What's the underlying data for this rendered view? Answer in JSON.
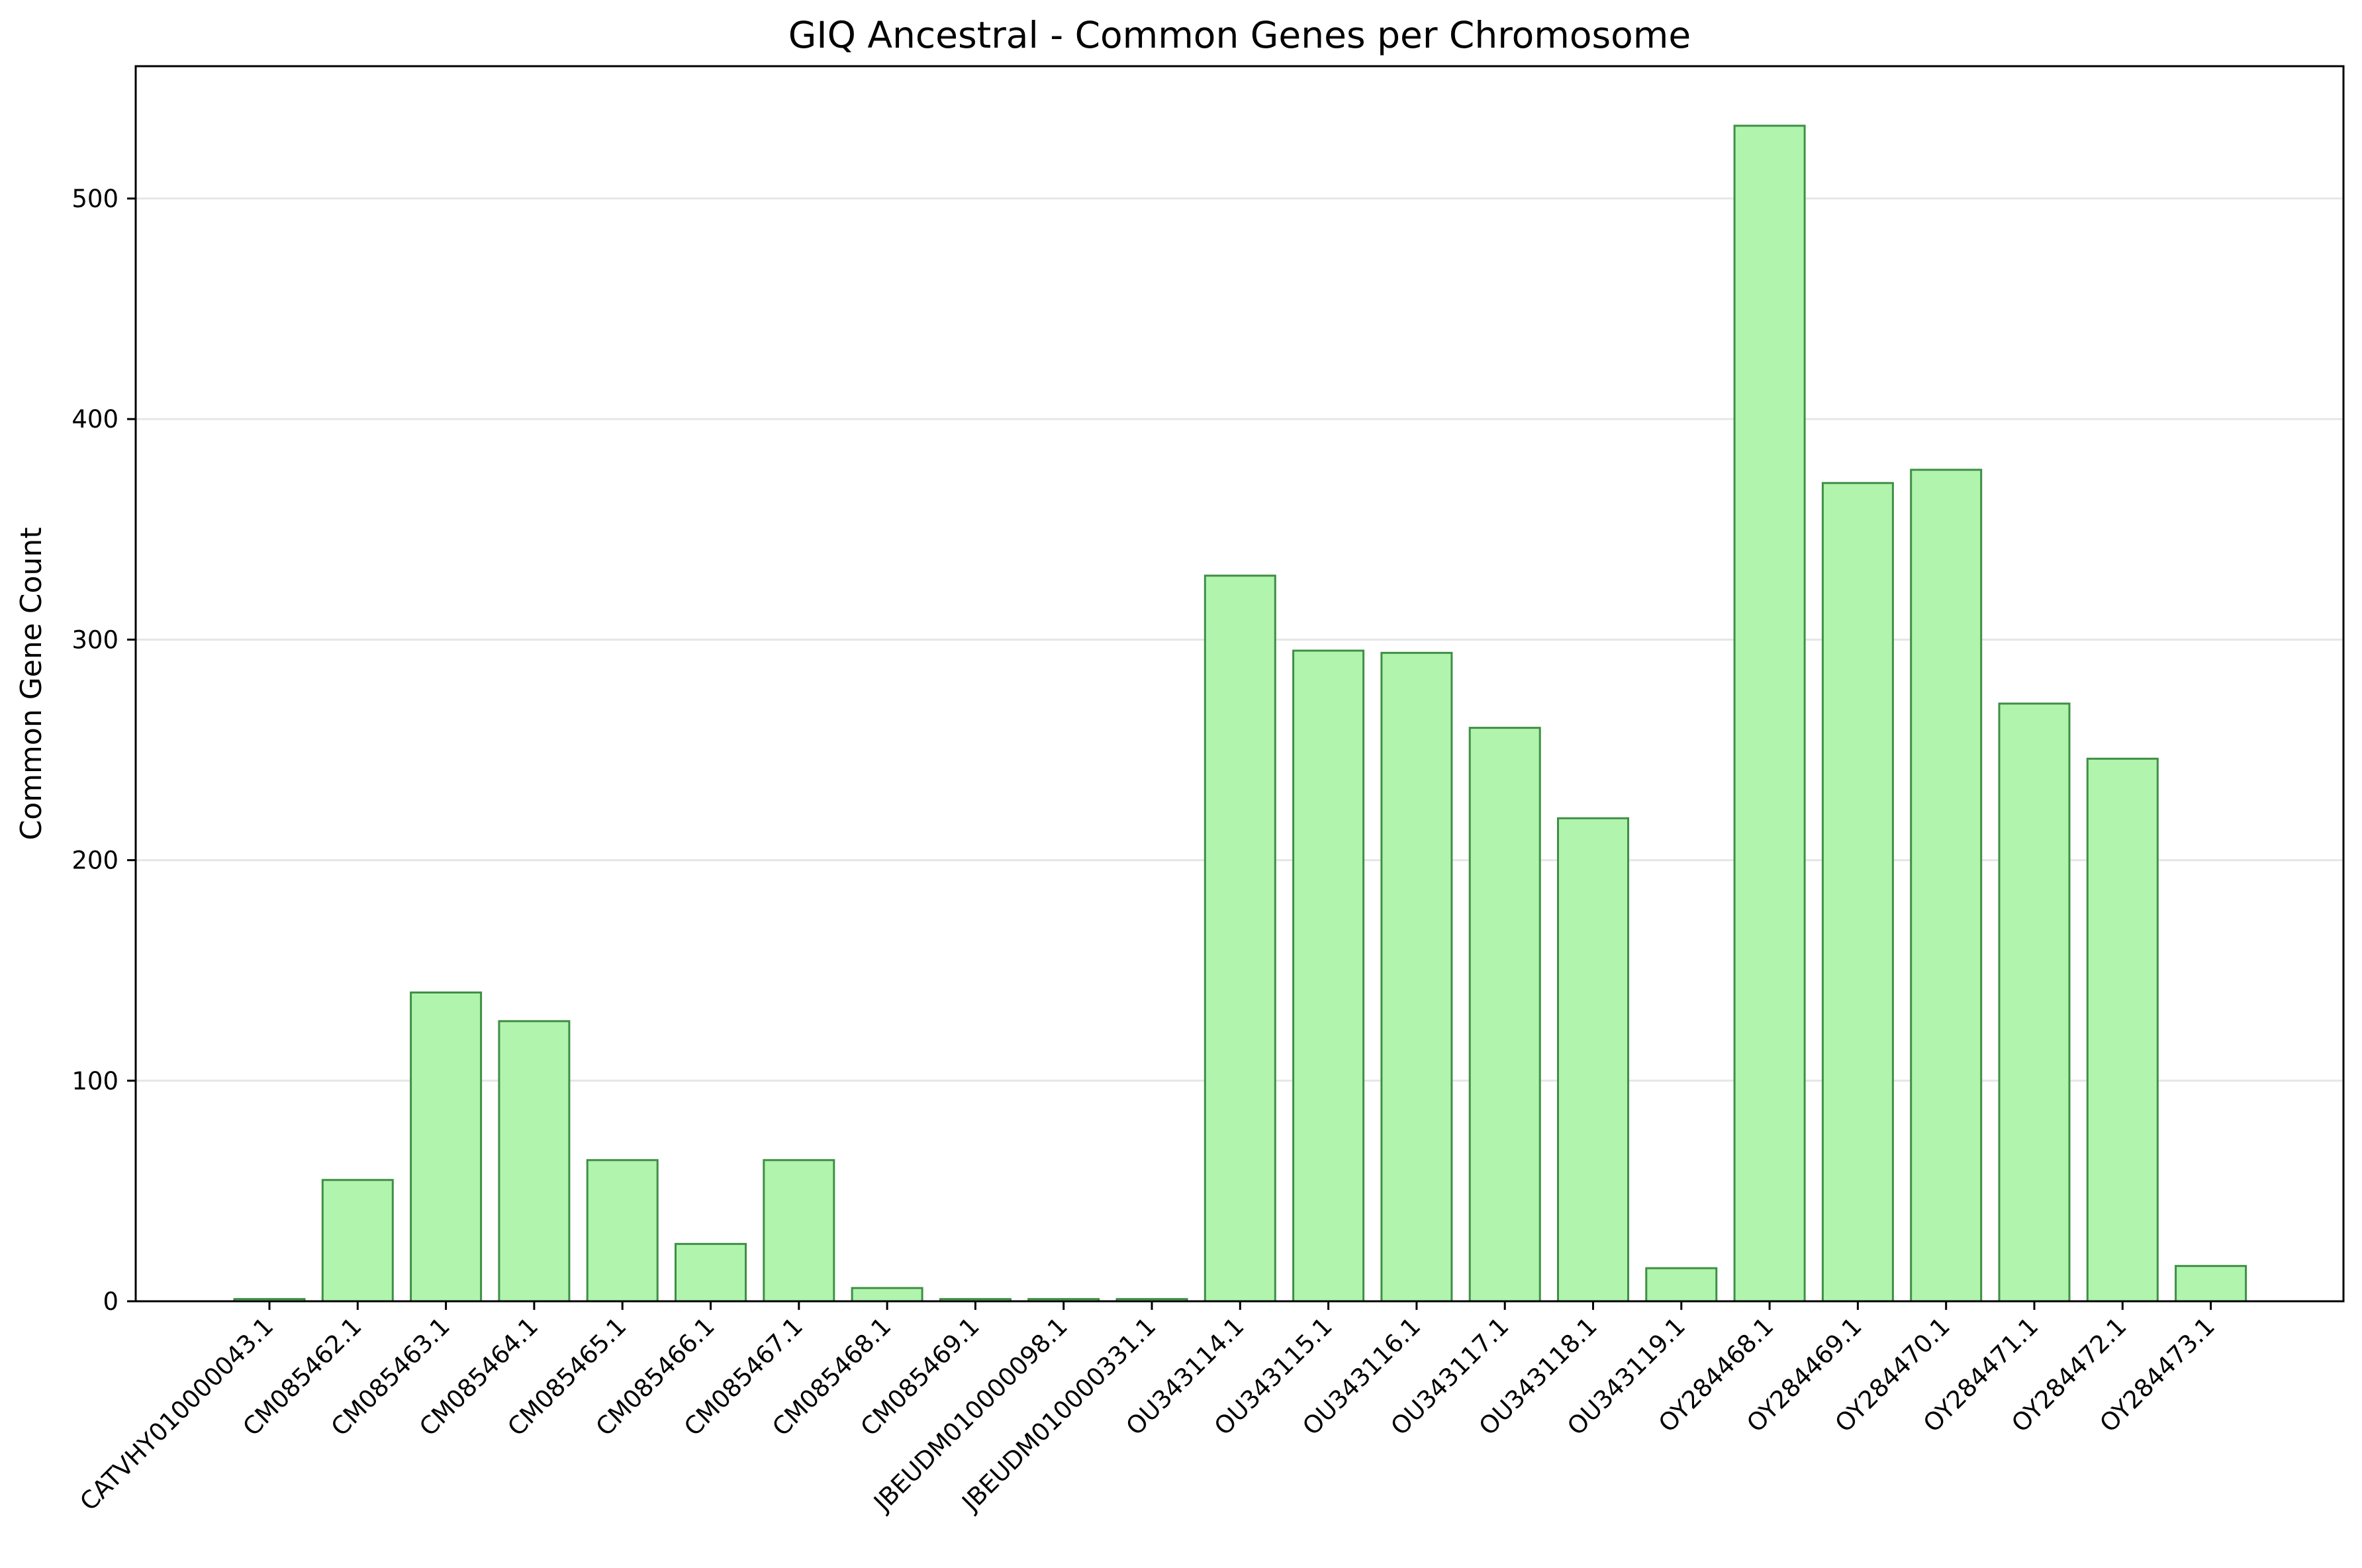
{
  "chart_data": {
    "type": "bar",
    "title": "GIQ Ancestral - Common Genes per Chromosome",
    "xlabel": "",
    "ylabel": "Common Gene Count",
    "categories": [
      "CATVHY010000043.1",
      "CM085462.1",
      "CM085463.1",
      "CM085464.1",
      "CM085465.1",
      "CM085466.1",
      "CM085467.1",
      "CM085468.1",
      "CM085469.1",
      "JBEUDM010000098.1",
      "JBEUDM010000331.1",
      "OU343114.1",
      "OU343115.1",
      "OU343116.1",
      "OU343117.1",
      "OU343118.1",
      "OU343119.1",
      "OY284468.1",
      "OY284469.1",
      "OY284470.1",
      "OY284471.1",
      "OY284472.1",
      "OY284473.1"
    ],
    "values": [
      1,
      55,
      140,
      127,
      64,
      26,
      64,
      6,
      1,
      1,
      1,
      329,
      295,
      294,
      260,
      219,
      15,
      533,
      371,
      377,
      271,
      246,
      16
    ],
    "ylim": [
      0,
      560
    ],
    "yticks": [
      0,
      100,
      200,
      300,
      400,
      500
    ],
    "grid": "y",
    "legend": "none",
    "colors": {
      "bar_fill": "#b0f4ae",
      "bar_edge": "#3f8f45",
      "grid": "#e6e6e6",
      "axis": "#000000"
    }
  }
}
